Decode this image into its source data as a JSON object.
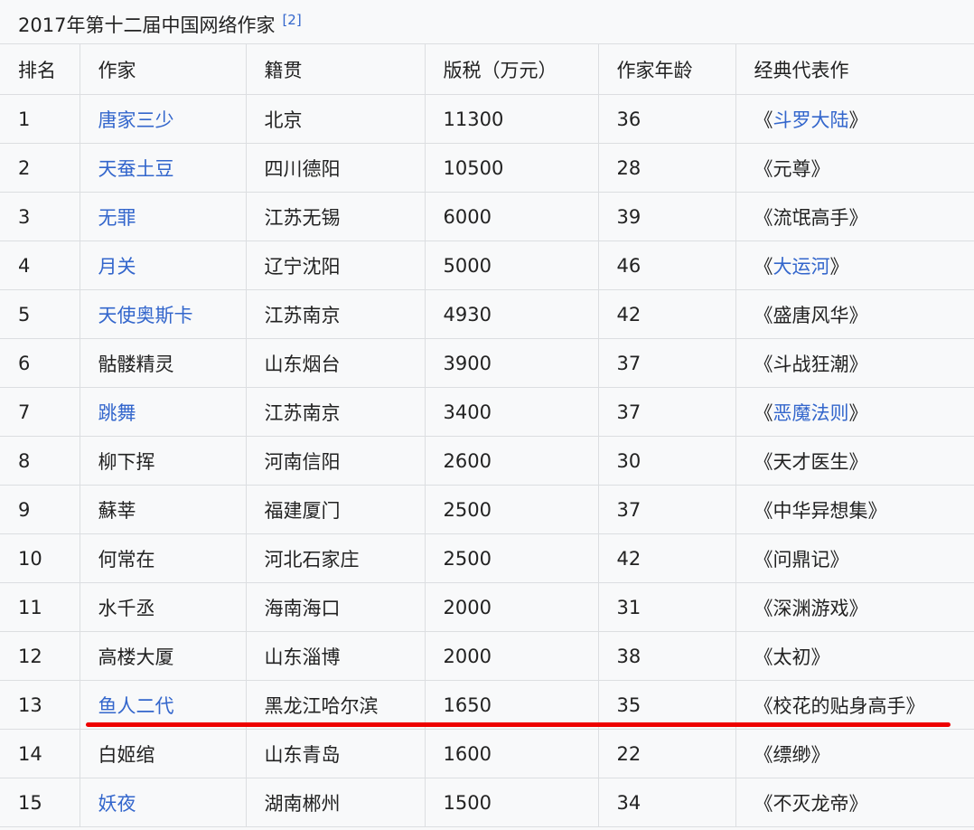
{
  "caption": {
    "title": "2017年第十二届中国网络作家",
    "ref": "[2]"
  },
  "columns": [
    "排名",
    "作家",
    "籍贯",
    "版税（万元）",
    "作家年龄",
    "经典代表作"
  ],
  "rows": [
    {
      "rank": "1",
      "author": "唐家三少",
      "author_link": true,
      "origin": "北京",
      "royalty": "11300",
      "age": "36",
      "work": "斗罗大陆",
      "work_link": true
    },
    {
      "rank": "2",
      "author": "天蚕土豆",
      "author_link": true,
      "origin": "四川德阳",
      "royalty": "10500",
      "age": "28",
      "work": "元尊",
      "work_link": false
    },
    {
      "rank": "3",
      "author": "无罪",
      "author_link": true,
      "origin": "江苏无锡",
      "royalty": "6000",
      "age": "39",
      "work": "流氓高手",
      "work_link": false
    },
    {
      "rank": "4",
      "author": "月关",
      "author_link": true,
      "origin": "辽宁沈阳",
      "royalty": "5000",
      "age": "46",
      "work": "大运河",
      "work_link": true
    },
    {
      "rank": "5",
      "author": "天使奥斯卡",
      "author_link": true,
      "origin": "江苏南京",
      "royalty": "4930",
      "age": "42",
      "work": "盛唐风华",
      "work_link": false
    },
    {
      "rank": "6",
      "author": "骷髅精灵",
      "author_link": false,
      "origin": "山东烟台",
      "royalty": "3900",
      "age": "37",
      "work": "斗战狂潮",
      "work_link": false
    },
    {
      "rank": "7",
      "author": "跳舞",
      "author_link": true,
      "origin": "江苏南京",
      "royalty": "3400",
      "age": "37",
      "work": "恶魔法则",
      "work_link": true
    },
    {
      "rank": "8",
      "author": "柳下挥",
      "author_link": false,
      "origin": "河南信阳",
      "royalty": "2600",
      "age": "30",
      "work": "天才医生",
      "work_link": false
    },
    {
      "rank": "9",
      "author": "蘇莘",
      "author_link": false,
      "origin": "福建厦门",
      "royalty": "2500",
      "age": "37",
      "work": "中华异想集",
      "work_link": false
    },
    {
      "rank": "10",
      "author": "何常在",
      "author_link": false,
      "origin": "河北石家庄",
      "royalty": "2500",
      "age": "42",
      "work": "问鼎记",
      "work_link": false
    },
    {
      "rank": "11",
      "author": "水千丞",
      "author_link": false,
      "origin": "海南海口",
      "royalty": "2000",
      "age": "31",
      "work": "深渊游戏",
      "work_link": false
    },
    {
      "rank": "12",
      "author": "高楼大厦",
      "author_link": false,
      "origin": "山东淄博",
      "royalty": "2000",
      "age": "38",
      "work": "太初",
      "work_link": false
    },
    {
      "rank": "13",
      "author": "鱼人二代",
      "author_link": true,
      "origin": "黑龙江哈尔滨",
      "royalty": "1650",
      "age": "35",
      "work": "校花的贴身高手",
      "work_link": false
    },
    {
      "rank": "14",
      "author": "白姬绾",
      "author_link": false,
      "origin": "山东青岛",
      "royalty": "1600",
      "age": "22",
      "work": "缥缈",
      "work_link": false
    },
    {
      "rank": "15",
      "author": "妖夜",
      "author_link": true,
      "origin": "湖南郴州",
      "royalty": "1500",
      "age": "34",
      "work": "不灭龙帝",
      "work_link": false
    }
  ],
  "quote_open": "《",
  "quote_close": "》",
  "colors": {
    "link": "#3366cc",
    "highlight_line": "#ee0000"
  }
}
